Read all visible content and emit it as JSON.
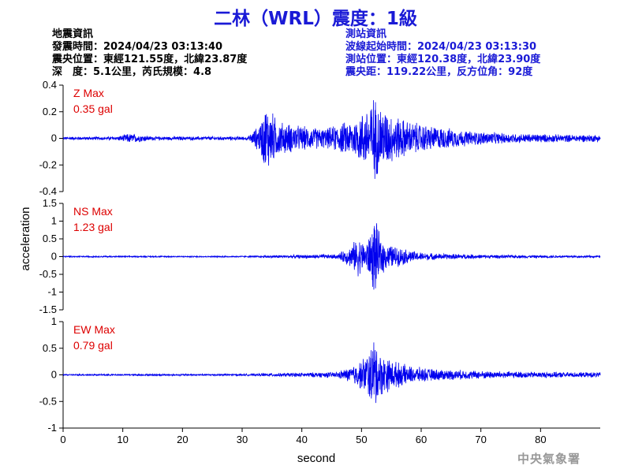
{
  "title": "二林（WRL）震度：1級",
  "colors": {
    "title": "#1a1ad6",
    "station_info": "#1a1ad6",
    "trace": "#0000ee",
    "max_label": "#dd0000",
    "axis": "#000000",
    "watermark": "#999999"
  },
  "event_info": {
    "header": "地震資訊",
    "origin_time": "發震時間：2024/04/23 03:13:40",
    "epicenter": "震央位置：東經121.55度，北緯23.87度",
    "depth_magnitude": "深　度：5.1公里，芮氏規模：4.8"
  },
  "station_info": {
    "header": "測站資訊",
    "wave_start": "波線起始時間：2024/04/23 03:13:30",
    "location": "測站位置：東經120.38度，北緯23.90度",
    "distance_azimuth": "震央距：119.22公里，反方位角：92度"
  },
  "watermark": "中央氣象署",
  "chart_data": {
    "type": "line",
    "xlabel": "second",
    "ylabel": "acceleration",
    "xlim": [
      0,
      90
    ],
    "xticks": [
      0,
      10,
      20,
      30,
      40,
      50,
      60,
      70,
      80
    ],
    "panels": [
      {
        "component": "Z",
        "max_title": "Z Max",
        "max_value": "0.35 gal",
        "ylim": [
          -0.4,
          0.4
        ],
        "yticks": [
          -0.4,
          -0.2,
          0,
          0.2,
          0.4
        ],
        "ytick_labels": [
          "-0.4",
          "-0.2",
          "0",
          "0.2",
          "0.4"
        ],
        "envelope": [
          [
            0,
            0.012
          ],
          [
            9,
            0.015
          ],
          [
            11,
            0.04
          ],
          [
            13,
            0.03
          ],
          [
            15,
            0.015
          ],
          [
            31,
            0.015
          ],
          [
            33,
            0.12
          ],
          [
            34,
            0.28
          ],
          [
            35,
            0.22
          ],
          [
            36,
            0.14
          ],
          [
            40,
            0.1
          ],
          [
            44,
            0.08
          ],
          [
            47,
            0.13
          ],
          [
            49,
            0.16
          ],
          [
            51,
            0.26
          ],
          [
            52,
            0.35
          ],
          [
            53,
            0.28
          ],
          [
            55,
            0.2
          ],
          [
            58,
            0.14
          ],
          [
            62,
            0.1
          ],
          [
            68,
            0.06
          ],
          [
            75,
            0.04
          ],
          [
            85,
            0.03
          ],
          [
            90,
            0.03
          ]
        ]
      },
      {
        "component": "NS",
        "max_title": "NS Max",
        "max_value": "1.23 gal",
        "ylim": [
          -1.5,
          1.5
        ],
        "yticks": [
          -1.5,
          -1,
          -0.5,
          0,
          0.5,
          1,
          1.5
        ],
        "ytick_labels": [
          "-1.5",
          "-1",
          "-0.5",
          "0",
          "0.5",
          "1",
          "1.5"
        ],
        "envelope": [
          [
            0,
            0.02
          ],
          [
            32,
            0.02
          ],
          [
            34,
            0.04
          ],
          [
            46,
            0.07
          ],
          [
            48,
            0.3
          ],
          [
            49.5,
            0.6
          ],
          [
            50.5,
            0.4
          ],
          [
            51.5,
            0.7
          ],
          [
            52.2,
            1.23
          ],
          [
            53,
            0.7
          ],
          [
            54,
            0.4
          ],
          [
            56,
            0.3
          ],
          [
            59,
            0.15
          ],
          [
            62,
            0.1
          ],
          [
            70,
            0.06
          ],
          [
            80,
            0.04
          ],
          [
            90,
            0.03
          ]
        ]
      },
      {
        "component": "EW",
        "max_title": "EW Max",
        "max_value": "0.79 gal",
        "ylim": [
          -1,
          1
        ],
        "yticks": [
          -1,
          -0.5,
          0,
          0.5,
          1
        ],
        "ytick_labels": [
          "-1",
          "-0.5",
          "0",
          "0.5",
          "1"
        ],
        "envelope": [
          [
            0,
            0.015
          ],
          [
            32,
            0.02
          ],
          [
            34,
            0.03
          ],
          [
            46,
            0.06
          ],
          [
            48,
            0.15
          ],
          [
            50,
            0.3
          ],
          [
            51.5,
            0.55
          ],
          [
            52.2,
            0.79
          ],
          [
            53,
            0.45
          ],
          [
            55,
            0.3
          ],
          [
            58,
            0.18
          ],
          [
            62,
            0.12
          ],
          [
            70,
            0.08
          ],
          [
            80,
            0.06
          ],
          [
            90,
            0.05
          ]
        ]
      }
    ]
  }
}
